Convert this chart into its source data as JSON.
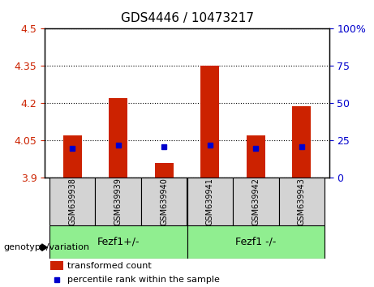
{
  "title": "GDS4446 / 10473217",
  "samples": [
    "GSM639938",
    "GSM639939",
    "GSM639940",
    "GSM639941",
    "GSM639942",
    "GSM639943"
  ],
  "red_values": [
    4.07,
    4.22,
    3.96,
    4.35,
    4.07,
    4.19
  ],
  "red_bottoms": [
    3.9,
    3.9,
    3.9,
    3.9,
    3.9,
    3.9
  ],
  "blue_percentiles": [
    20,
    22,
    21,
    22,
    20,
    21
  ],
  "ylim": [
    3.9,
    4.5
  ],
  "yticks_left": [
    3.9,
    4.05,
    4.2,
    4.35,
    4.5
  ],
  "yticks_right": [
    0,
    25,
    50,
    75,
    100
  ],
  "right_labels": [
    "0",
    "25",
    "50",
    "75",
    "100%"
  ],
  "group1_label": "Fezf1+/-",
  "group2_label": "Fezf1 -/-",
  "group_label_prefix": "genotype/variation",
  "legend_red": "transformed count",
  "legend_blue": "percentile rank within the sample",
  "bar_width": 0.4,
  "red_color": "#cc2200",
  "blue_color": "#0000cc",
  "left_tick_color": "#cc2200",
  "right_tick_color": "#0000cc",
  "bg_plot": "#ffffff",
  "bg_label": "#d3d3d3",
  "bg_group": "#90ee90"
}
